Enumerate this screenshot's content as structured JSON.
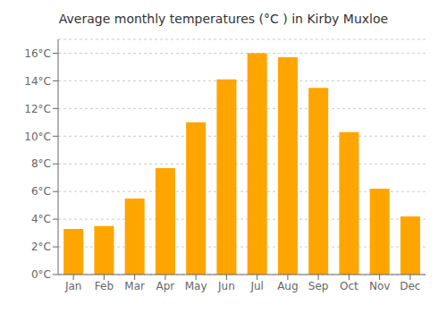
{
  "chart_data": {
    "type": "bar",
    "title": "Average monthly temperatures (°C ) in Kirby Muxloe",
    "categories": [
      "Jan",
      "Feb",
      "Mar",
      "Apr",
      "May",
      "Jun",
      "Jul",
      "Aug",
      "Sep",
      "Oct",
      "Nov",
      "Dec"
    ],
    "values": [
      3.3,
      3.5,
      5.5,
      7.7,
      11.0,
      14.1,
      16.0,
      15.7,
      13.5,
      10.3,
      6.2,
      4.2
    ],
    "color": "#FFA500",
    "ylim": [
      0,
      17
    ],
    "yticks": [
      {
        "value": 0,
        "label": "0°C"
      },
      {
        "value": 2,
        "label": "2°C"
      },
      {
        "value": 4,
        "label": "4°C"
      },
      {
        "value": 6,
        "label": "6°C"
      },
      {
        "value": 8,
        "label": "8°C"
      },
      {
        "value": 10,
        "label": "10°C"
      },
      {
        "value": 12,
        "label": "12°C"
      },
      {
        "value": 14,
        "label": "14°C"
      },
      {
        "value": 16,
        "label": "16°C"
      }
    ],
    "grid": true
  }
}
